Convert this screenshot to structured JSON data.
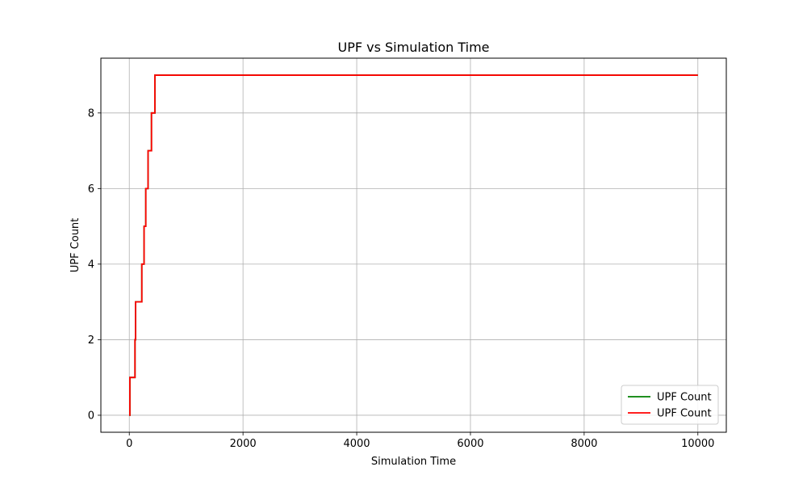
{
  "chart_data": {
    "type": "line",
    "title": "UPF vs Simulation Time",
    "xlabel": "Simulation Time",
    "ylabel": "UPF Count",
    "xlim": [
      -500,
      10500
    ],
    "ylim": [
      -0.45,
      9.45
    ],
    "xticks": [
      0,
      2000,
      4000,
      6000,
      8000,
      10000
    ],
    "yticks": [
      0,
      2,
      4,
      6,
      8
    ],
    "grid": true,
    "legend_position": "bottom-right",
    "step": "post",
    "series": [
      {
        "name": "UPF Count",
        "color": "#008000",
        "x": [
          0,
          10,
          100,
          110,
          220,
          260,
          290,
          330,
          390,
          450,
          10000
        ],
        "y": [
          0,
          1,
          2,
          3,
          4,
          5,
          6,
          7,
          8,
          9,
          9
        ]
      },
      {
        "name": "UPF Count",
        "color": "#ff0000",
        "x": [
          0,
          10,
          100,
          110,
          220,
          260,
          290,
          330,
          390,
          450,
          10000
        ],
        "y": [
          0,
          1,
          2,
          3,
          4,
          5,
          6,
          7,
          8,
          9,
          9
        ]
      }
    ]
  }
}
